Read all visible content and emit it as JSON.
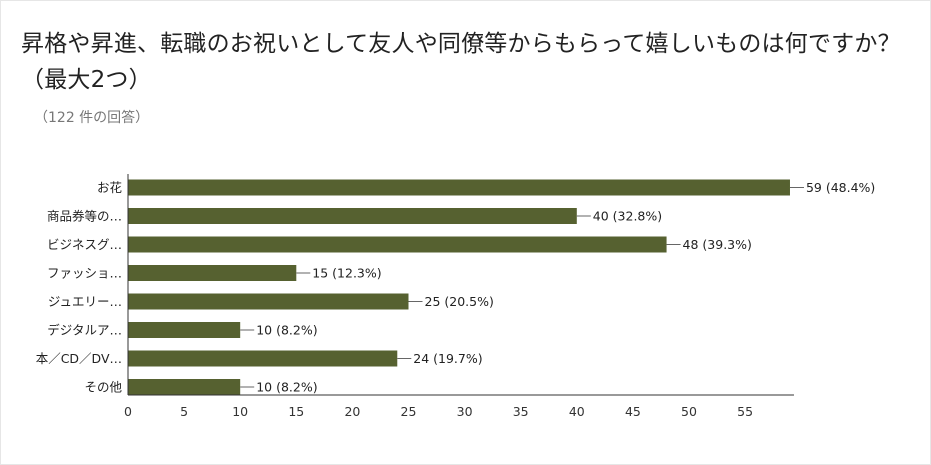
{
  "question": {
    "title": "昇格や昇進、転職のお祝いとして友人や同僚等からもらって嬉しいものは何ですか？（最大2つ）",
    "response_count": "（122 件の回答）"
  },
  "colors": {
    "bar": "#566130",
    "axis": "#333333",
    "grid": "#cccccc"
  },
  "chart_data": {
    "type": "bar",
    "orientation": "horizontal",
    "categories": [
      "お花",
      "商品券等の…",
      "ビジネスグ…",
      "ファッショ…",
      "ジュエリー…",
      "デジタルア…",
      "本／CD／DV…",
      "その他"
    ],
    "values": [
      59,
      40,
      48,
      15,
      25,
      10,
      24,
      10
    ],
    "data_labels": [
      "59 (48.4%)",
      "40 (32.8%)",
      "48 (39.3%)",
      "15 (12.3%)",
      "25 (20.5%)",
      "10 (8.2%)",
      "24 (19.7%)",
      "10 (8.2%)"
    ],
    "xlim": [
      0,
      59
    ],
    "xticks": [
      0,
      5,
      10,
      15,
      20,
      25,
      30,
      35,
      40,
      45,
      50,
      55
    ],
    "grid": false,
    "legend": "none"
  }
}
